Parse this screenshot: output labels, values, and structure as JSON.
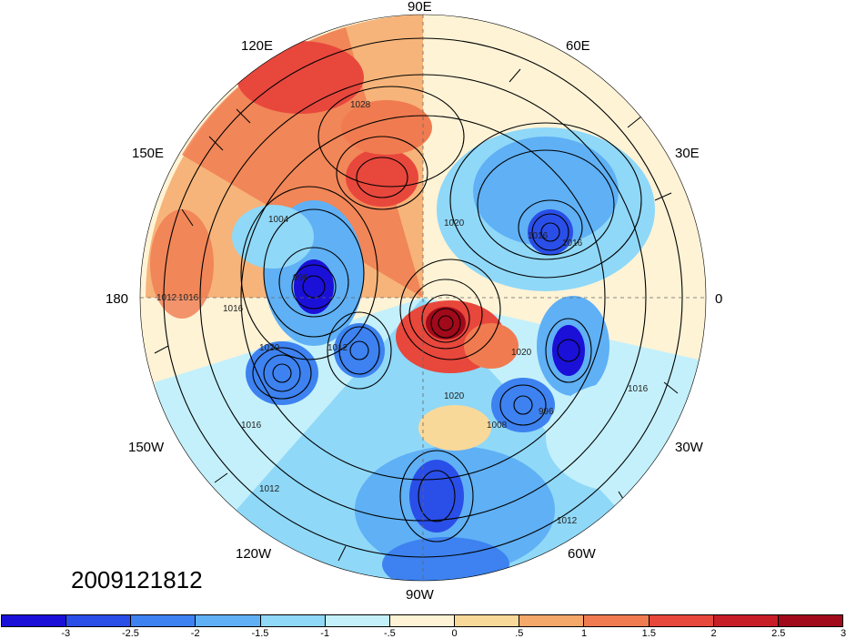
{
  "map": {
    "projection": "north-polar-stereographic",
    "longitude_labels": [
      {
        "id": "90e",
        "text": "90E"
      },
      {
        "id": "60e",
        "text": "60E"
      },
      {
        "id": "30e",
        "text": "30E"
      },
      {
        "id": "0",
        "text": "0"
      },
      {
        "id": "30w",
        "text": "30W"
      },
      {
        "id": "60w",
        "text": "60W"
      },
      {
        "id": "90w",
        "text": "90W"
      },
      {
        "id": "120w",
        "text": "120W"
      },
      {
        "id": "150w",
        "text": "150W"
      },
      {
        "id": "180",
        "text": "180"
      },
      {
        "id": "150e",
        "text": "150E"
      },
      {
        "id": "120e",
        "text": "120E"
      }
    ],
    "contour_labels": [
      "1028",
      "1020",
      "1016",
      "1004",
      "996",
      "1016",
      "1012",
      "1016",
      "1020",
      "1012",
      "1020",
      "1008",
      "1016",
      "1016",
      "1016",
      "1020",
      "1012",
      "1012",
      "996"
    ]
  },
  "datestamp": "2009121812",
  "colorbar": {
    "colors": [
      "#1a10d8",
      "#2a4ee8",
      "#3d82f0",
      "#5fb0f5",
      "#8fd8f8",
      "#c4f0fb",
      "#fff3d6",
      "#f8d99a",
      "#f4a86a",
      "#f07b50",
      "#e8473c",
      "#c81e28",
      "#a00a1a"
    ],
    "labels": [
      "-3",
      "-2.5",
      "-2",
      "-1.5",
      "-1",
      "-.5",
      "0",
      ".5",
      "1",
      "1.5",
      "2",
      "2.5",
      "3"
    ]
  }
}
